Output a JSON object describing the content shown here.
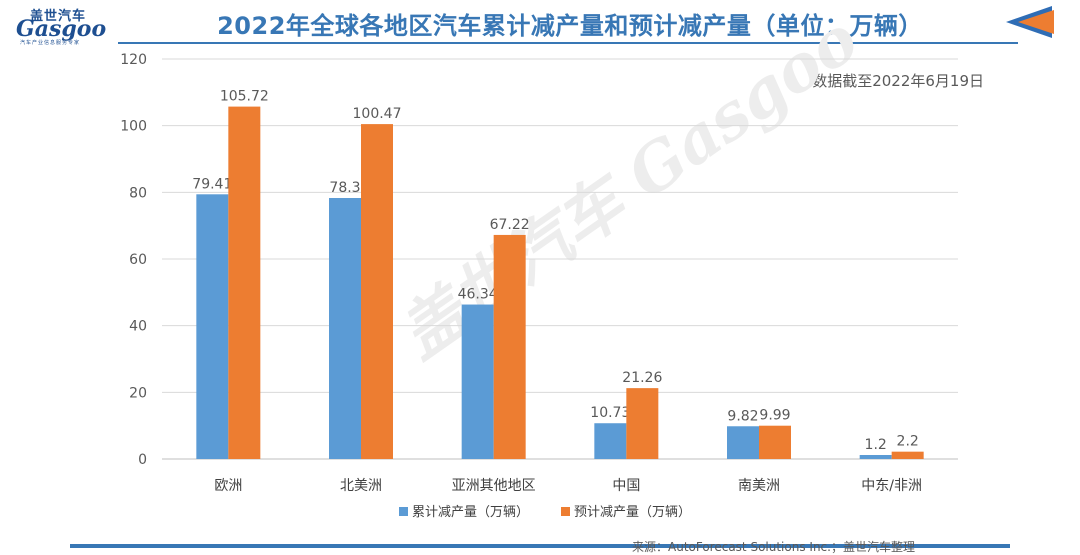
{
  "header": {
    "title": "2022年全球各地区汽车累计减产量和预计减产量（单位：万辆）",
    "logo_cn": "盖世汽车",
    "logo_en": "Gasgoo",
    "logo_sub": "汽车产业信息服务专家",
    "nav_icon": "back-arrow-icon"
  },
  "note": "数据截至2022年6月19日",
  "watermark": "盖世汽车 Gasgoo",
  "source": "来源：AutoForecast Solutions Inc.；盖世汽车整理",
  "colors": {
    "cumulative": "#5b9bd5",
    "forecast": "#ed7d31",
    "title": "#3877b5",
    "grid": "#d9d9d9",
    "text": "#595959"
  },
  "chart_data": {
    "type": "bar",
    "categories": [
      "欧洲",
      "北美洲",
      "亚洲其他地区",
      "中国",
      "南美洲",
      "中东/非洲"
    ],
    "series": [
      {
        "name": "累计减产量（万辆）",
        "values": [
          79.41,
          78.3,
          46.34,
          10.73,
          9.82,
          1.2
        ],
        "labels": [
          "79.41",
          "78.3",
          "46.34",
          "10.73",
          "9.82",
          "1.2"
        ]
      },
      {
        "name": "预计减产量（万辆）",
        "values": [
          105.72,
          100.47,
          67.22,
          21.26,
          9.99,
          2.2
        ],
        "labels": [
          "105.72",
          "100.47",
          "67.22",
          "21.26",
          "9.99",
          "2.2"
        ]
      }
    ],
    "yticks": [
      0,
      20,
      40,
      60,
      80,
      100,
      120
    ],
    "ylim": [
      0,
      120
    ],
    "grid": true,
    "legend": "bottom-center"
  }
}
